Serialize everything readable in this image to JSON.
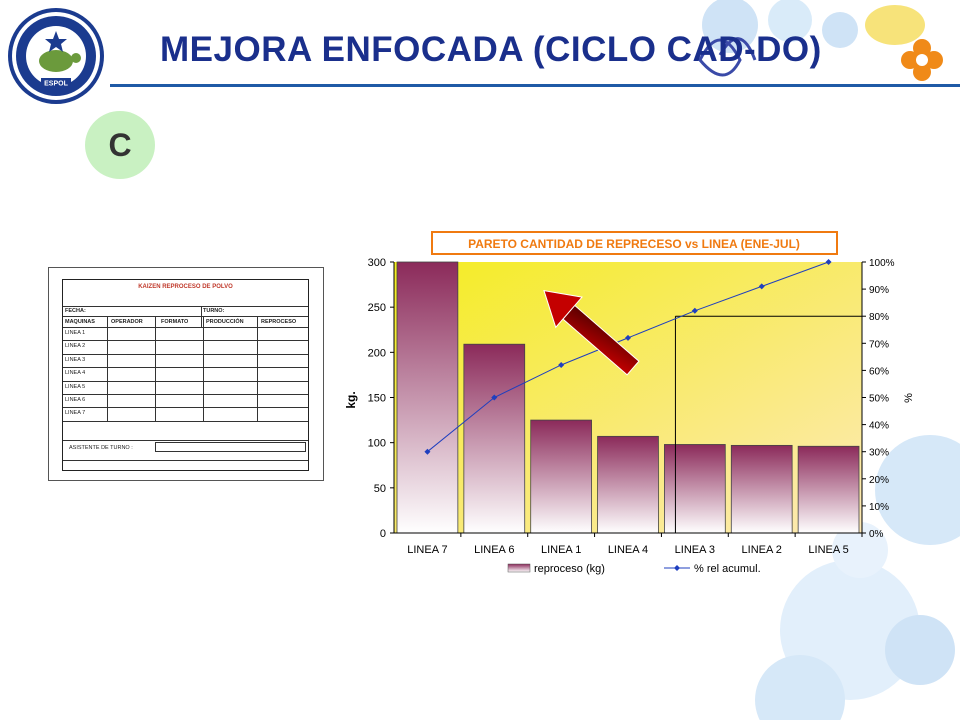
{
  "slide": {
    "title": "MEJORA ENFOCADA (CICLO CAD-DO)",
    "step_letter": "C",
    "logo_text": "ESCUELA SUPERIOR POLITECNICA DEL LITORAL",
    "logo_short": "ESPOL"
  },
  "form": {
    "title": "KAIZEN REPROCESO DE POLVO",
    "fecha_label": "FECHA:",
    "turno_label": "TURNO:",
    "columns": [
      "MAQUINAS",
      "OPERADOR",
      "FORMATO",
      "PRODUCCIÓN",
      "REPROCESO"
    ],
    "rows": [
      "LINEA 1",
      "LINEA 2",
      "LINEA 3",
      "LINEA 4",
      "LINEA 5",
      "LINEA 6",
      "LINEA 7"
    ],
    "assistant_label": "ASISTENTE DE TURNO :"
  },
  "colors": {
    "title": "#1a2f8c",
    "rule": "#1f5aa6",
    "step_circle": "#c9f1c2",
    "bar_top": "#8b2a5a",
    "bar_bottom": "#ffffff",
    "line": "#1f3fbf",
    "bg_top": "#f4ec20",
    "bg_bottom": "#fde9b8",
    "arrow_start": "#c40000",
    "arrow_end": "#5a0000",
    "title_box": "#f07a10"
  },
  "chart_data": {
    "type": "bar",
    "title": "PARETO CANTIDAD DE REPRECESO vs LINEA (ENE-JUL)",
    "categories": [
      "LINEA 7",
      "LINEA 6",
      "LINEA 1",
      "LINEA 4",
      "LINEA 3",
      "LINEA 2",
      "LINEA 5"
    ],
    "series": [
      {
        "name": "reproceso (kg)",
        "type": "bar",
        "axis": "left",
        "values": [
          308,
          209,
          125,
          107,
          98,
          97,
          96
        ]
      },
      {
        "name": "% rel acumul.",
        "type": "line",
        "axis": "right",
        "values": [
          30,
          50,
          62,
          72,
          82,
          91,
          100
        ]
      }
    ],
    "ylabel": "kg.",
    "ylabel_right": "%",
    "ylim": [
      0,
      300
    ],
    "y_ticks": [
      0,
      50,
      100,
      150,
      200,
      250,
      300
    ],
    "y2lim": [
      0,
      100
    ],
    "y2_ticks": [
      "0%",
      "10%",
      "20%",
      "30%",
      "40%",
      "50%",
      "60%",
      "70%",
      "80%",
      "90%",
      "100%"
    ],
    "reference_percent": 80,
    "legend_position": "bottom",
    "grid": false
  }
}
